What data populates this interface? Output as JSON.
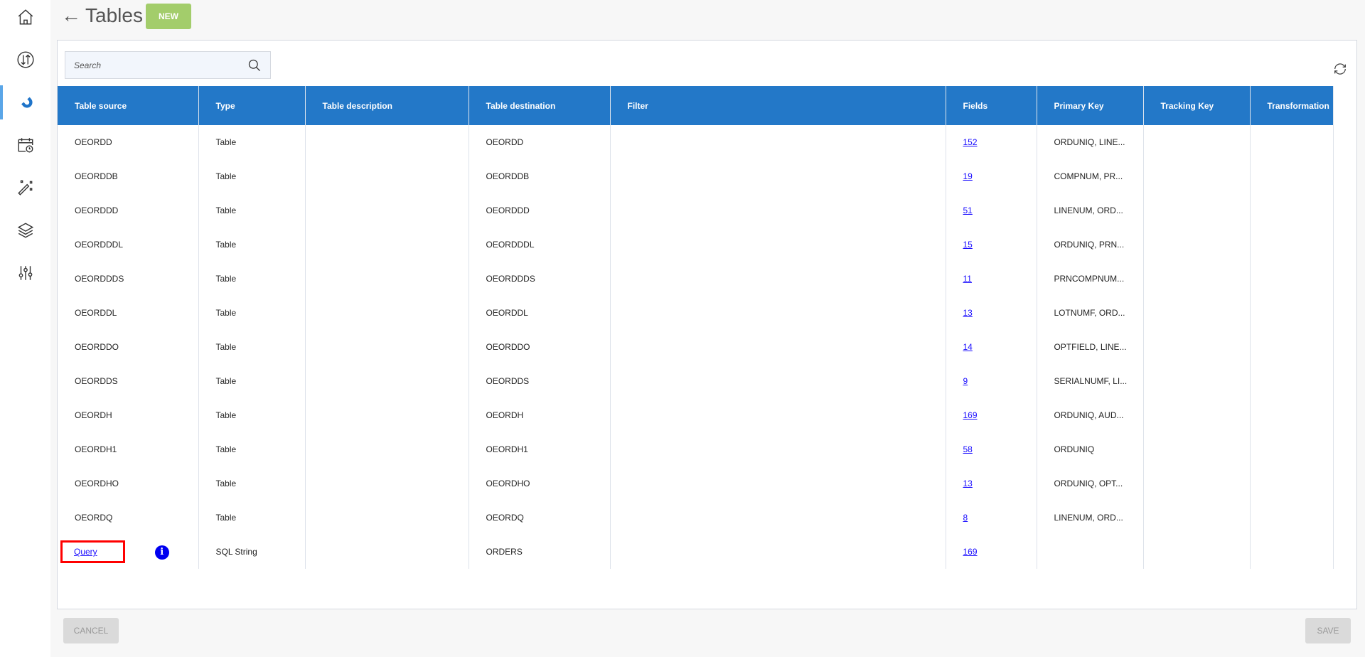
{
  "sidebar": {
    "items": [
      {
        "icon": "home-icon"
      },
      {
        "icon": "transfer-icon"
      },
      {
        "icon": "magnet-icon",
        "active": true
      },
      {
        "icon": "calendar-clock-icon"
      },
      {
        "icon": "magic-wand-icon"
      },
      {
        "icon": "layers-icon"
      },
      {
        "icon": "sliders-icon"
      }
    ]
  },
  "header": {
    "back": "←",
    "title": "Tables",
    "new_label": "NEW"
  },
  "search": {
    "placeholder": "Search"
  },
  "table": {
    "columns": [
      "Table source",
      "Type",
      "Table description",
      "Table destination",
      "Filter",
      "Fields",
      "Primary Key",
      "Tracking Key",
      "Transformation"
    ],
    "rows": [
      {
        "source": "OEORDD",
        "type": "Table",
        "description": "",
        "destination": "OEORDD",
        "filter": "",
        "fields": "152",
        "primary_key": "ORDUNIQ, LINE...",
        "tracking_key": "",
        "transformation": ""
      },
      {
        "source": "OEORDDB",
        "type": "Table",
        "description": "",
        "destination": "OEORDDB",
        "filter": "",
        "fields": "19",
        "primary_key": "COMPNUM, PR...",
        "tracking_key": "",
        "transformation": ""
      },
      {
        "source": "OEORDDD",
        "type": "Table",
        "description": "",
        "destination": "OEORDDD",
        "filter": "",
        "fields": "51",
        "primary_key": "LINENUM, ORD...",
        "tracking_key": "",
        "transformation": ""
      },
      {
        "source": "OEORDDDL",
        "type": "Table",
        "description": "",
        "destination": "OEORDDDL",
        "filter": "",
        "fields": "15",
        "primary_key": "ORDUNIQ, PRN...",
        "tracking_key": "",
        "transformation": ""
      },
      {
        "source": "OEORDDDS",
        "type": "Table",
        "description": "",
        "destination": "OEORDDDS",
        "filter": "",
        "fields": "11",
        "primary_key": "PRNCOMPNUM...",
        "tracking_key": "",
        "transformation": ""
      },
      {
        "source": "OEORDDL",
        "type": "Table",
        "description": "",
        "destination": "OEORDDL",
        "filter": "",
        "fields": "13",
        "primary_key": "LOTNUMF, ORD...",
        "tracking_key": "",
        "transformation": ""
      },
      {
        "source": "OEORDDO",
        "type": "Table",
        "description": "",
        "destination": "OEORDDO",
        "filter": "",
        "fields": "14",
        "primary_key": "OPTFIELD, LINE...",
        "tracking_key": "",
        "transformation": ""
      },
      {
        "source": "OEORDDS",
        "type": "Table",
        "description": "",
        "destination": "OEORDDS",
        "filter": "",
        "fields": "9",
        "primary_key": "SERIALNUMF, LI...",
        "tracking_key": "",
        "transformation": ""
      },
      {
        "source": "OEORDH",
        "type": "Table",
        "description": "",
        "destination": "OEORDH",
        "filter": "",
        "fields": "169",
        "primary_key": "ORDUNIQ, AUD...",
        "tracking_key": "",
        "transformation": ""
      },
      {
        "source": "OEORDH1",
        "type": "Table",
        "description": "",
        "destination": "OEORDH1",
        "filter": "",
        "fields": "58",
        "primary_key": "ORDUNIQ",
        "tracking_key": "",
        "transformation": ""
      },
      {
        "source": "OEORDHO",
        "type": "Table",
        "description": "",
        "destination": "OEORDHO",
        "filter": "",
        "fields": "13",
        "primary_key": "ORDUNIQ, OPT...",
        "tracking_key": "",
        "transformation": ""
      },
      {
        "source": "OEORDQ",
        "type": "Table",
        "description": "",
        "destination": "OEORDQ",
        "filter": "",
        "fields": "8",
        "primary_key": "LINENUM, ORD...",
        "tracking_key": "",
        "transformation": ""
      }
    ],
    "query_row": {
      "source": "Query",
      "info_icon": "i",
      "type": "SQL String",
      "destination": "ORDERS",
      "fields": "169"
    }
  },
  "footer": {
    "cancel_label": "CANCEL",
    "save_label": "SAVE"
  },
  "colors": {
    "header": "#2378c8",
    "new_button": "#a3cd6b",
    "link": "#1a0dff",
    "highlight": "#ff0000"
  }
}
